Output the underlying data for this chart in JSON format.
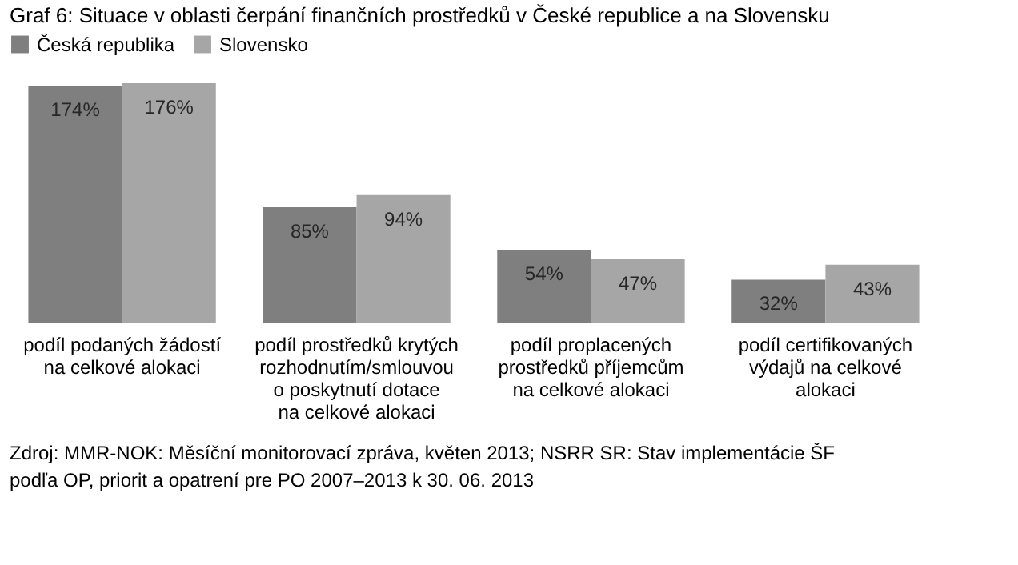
{
  "chart_data": {
    "type": "bar",
    "title": "Graf 6: Situace v oblasti čerpání finančních prostředků v České republice a na Slovensku",
    "categories": [
      "podíl podaných žádostí\nna celkové alokaci",
      "podíl prostředků krytých\nrozhodnutím/smlouvou\no poskytnutí dotace\nna celkové alokaci",
      "podíl proplacených\nprostředků příjemcům\nna celkové alokaci",
      "podíl certifikovaných\nvýdajů na celkové\nalokaci"
    ],
    "series": [
      {
        "name": "Česká republika",
        "color": "#7f7f7f",
        "values": [
          174,
          85,
          54,
          32
        ],
        "value_labels": [
          "174%",
          "85%",
          "54%",
          "32%"
        ]
      },
      {
        "name": "Slovensko",
        "color": "#a6a6a6",
        "values": [
          176,
          94,
          47,
          43
        ],
        "value_labels": [
          "176%",
          "94%",
          "47%",
          "43%"
        ]
      }
    ],
    "legend": "top",
    "grid": false,
    "annotations": [
      "Zdroj: MMR-NOK: Měsíční monitorovací zpráva, květen 2013; NSRR SR: Stav implementácie ŠF podľa OP, priorit a opatrení pre PO 2007–2013 k 30. 06. 2013"
    ]
  }
}
